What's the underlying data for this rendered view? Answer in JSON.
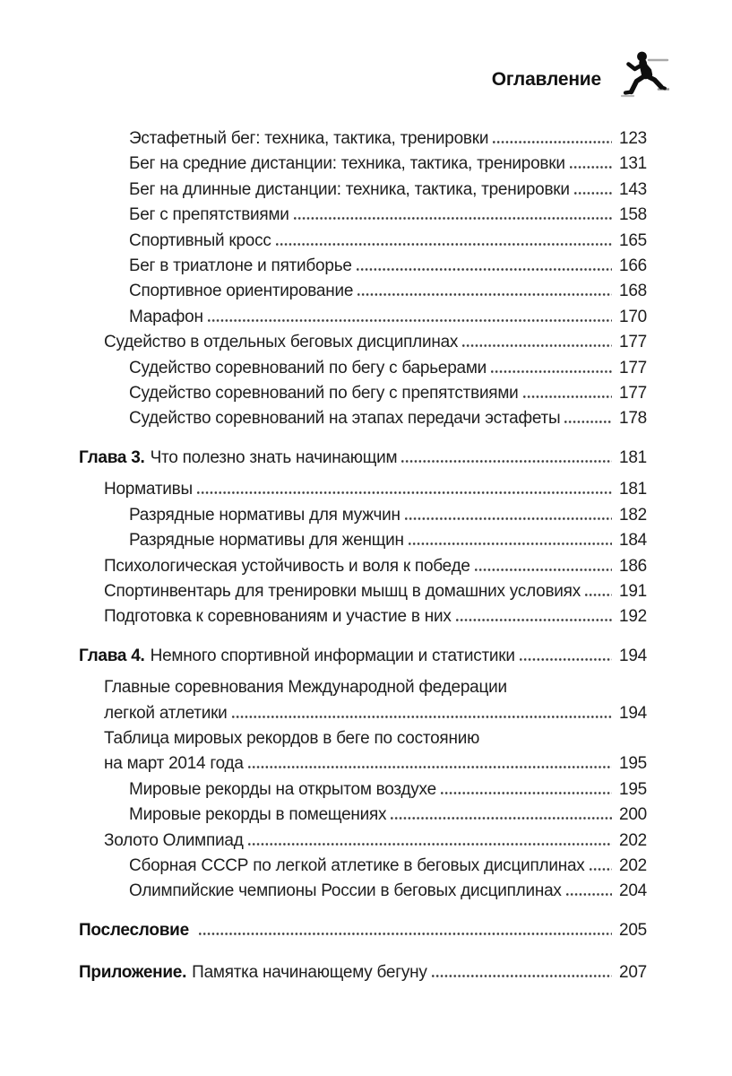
{
  "header": {
    "title": "Оглавление",
    "icon": "runner-icon"
  },
  "toc": {
    "entries": [
      {
        "level": 2,
        "text": "Эстафетный бег: техника, тактика, тренировки",
        "page": "123"
      },
      {
        "level": 2,
        "text": "Бег на средние дистанции: техника, тактика, тренировки",
        "page": "131"
      },
      {
        "level": 2,
        "text": "Бег на длинные дистанции: техника, тактика, тренировки",
        "page": "143"
      },
      {
        "level": 2,
        "text": "Бег с препятствиями",
        "page": "158"
      },
      {
        "level": 2,
        "text": "Спортивный кросс",
        "page": "165"
      },
      {
        "level": 2,
        "text": "Бег в триатлоне и пятиборье",
        "page": "166"
      },
      {
        "level": 2,
        "text": "Спортивное ориентирование",
        "page": "168"
      },
      {
        "level": 2,
        "text": "Марафон",
        "page": "170"
      },
      {
        "level": 1,
        "text": "Судейство в отдельных беговых дисциплинах",
        "page": "177"
      },
      {
        "level": 2,
        "text": "Судейство соревнований по бегу с барьерами",
        "page": "177"
      },
      {
        "level": 2,
        "text": "Судейство соревнований по бегу с препятствиями",
        "page": "177"
      },
      {
        "level": 2,
        "text": "Судейство соревнований на этапах передачи эстафеты",
        "page": "178"
      },
      {
        "level": 0,
        "prefix": "Глава 3.",
        "text": "Что полезно знать начинающим",
        "page": "181",
        "gap": "lg"
      },
      {
        "level": 1,
        "text": "Нормативы",
        "page": "181",
        "gap": "sm"
      },
      {
        "level": 2,
        "text": "Разрядные нормативы для мужчин",
        "page": "182"
      },
      {
        "level": 2,
        "text": "Разрядные нормативы для женщин",
        "page": "184"
      },
      {
        "level": 1,
        "text": "Психологическая устойчивость и воля к победе",
        "page": "186"
      },
      {
        "level": 1,
        "text": "Спортинвентарь для тренировки мышц в домашних условиях",
        "page": "191"
      },
      {
        "level": 1,
        "text": "Подготовка к соревнованиям и участие в них",
        "page": "192"
      },
      {
        "level": 0,
        "prefix": "Глава 4.",
        "text": "Немного спортивной информации и статистики",
        "page": "194",
        "gap": "lg"
      },
      {
        "level": 1,
        "text": "Главные соревнования Международной федерации",
        "page": null,
        "gap": "sm"
      },
      {
        "level": 1,
        "text": "легкой атлетики",
        "page": "194"
      },
      {
        "level": 1,
        "text": "Таблица мировых рекордов в беге по состоянию",
        "page": null
      },
      {
        "level": 1,
        "text": "на март 2014 года",
        "page": "195"
      },
      {
        "level": 2,
        "text": "Мировые рекорды на открытом воздухе",
        "page": "195"
      },
      {
        "level": 2,
        "text": "Мировые рекорды в помещениях",
        "page": "200"
      },
      {
        "level": 1,
        "text": "Золото Олимпиад",
        "page": "202"
      },
      {
        "level": 2,
        "text": "Сборная СССР по легкой атлетике в беговых дисциплинах",
        "page": "202"
      },
      {
        "level": 2,
        "text": "Олимпийские чемпионы России в беговых дисциплинах",
        "page": "204"
      },
      {
        "level": 0,
        "prefix": "Послесловие",
        "text": "",
        "page": "205",
        "gap": "lg"
      },
      {
        "level": 0,
        "prefix": "Приложение.",
        "text": "Памятка начинающему бегуну",
        "page": "207",
        "gap": "xl"
      }
    ]
  }
}
